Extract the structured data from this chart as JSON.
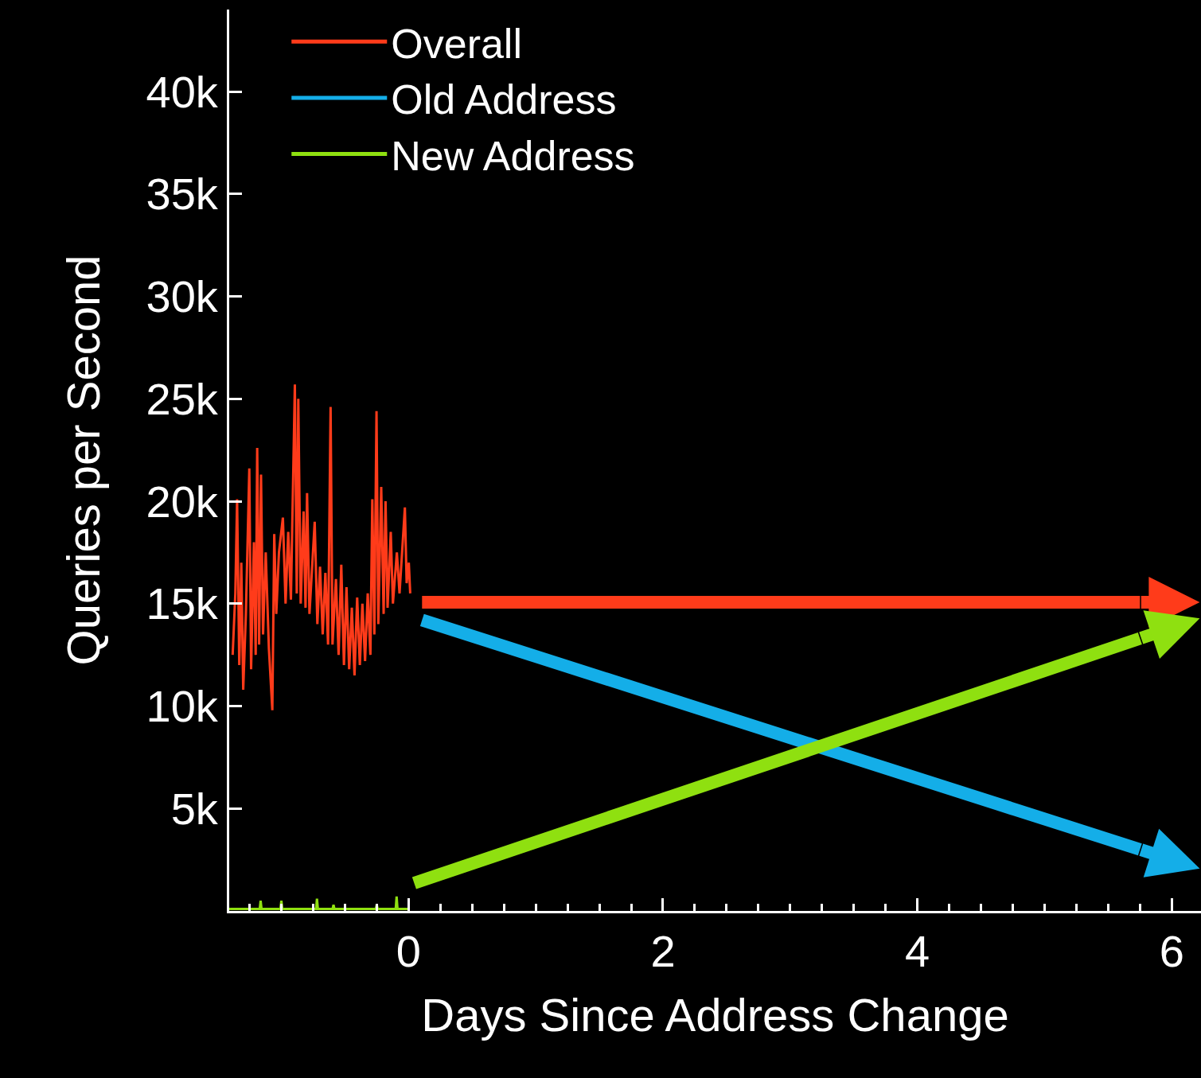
{
  "chart_data": {
    "type": "line",
    "xlabel": "Days Since Address Change",
    "ylabel": "Queries per Second",
    "xlim": [
      -1.41,
      6.23
    ],
    "ylim": [
      0,
      44000
    ],
    "xticks": [
      {
        "value": -1.25,
        "label": null
      },
      {
        "value": -1,
        "label": null
      },
      {
        "value": -0.75,
        "label": null
      },
      {
        "value": -0.5,
        "label": null
      },
      {
        "value": -0.25,
        "label": null
      },
      0,
      {
        "value": 0.25,
        "label": null
      },
      {
        "value": 0.5,
        "label": null
      },
      {
        "value": 0.75,
        "label": null
      },
      {
        "value": 1,
        "label": null
      },
      {
        "value": 1.25,
        "label": null
      },
      {
        "value": 1.5,
        "label": null
      },
      {
        "value": 1.75,
        "label": null
      },
      2,
      {
        "value": 2.25,
        "label": null
      },
      {
        "value": 2.5,
        "label": null
      },
      {
        "value": 2.75,
        "label": null
      },
      {
        "value": 3,
        "label": null
      },
      {
        "value": 3.25,
        "label": null
      },
      {
        "value": 3.5,
        "label": null
      },
      {
        "value": 3.75,
        "label": null
      },
      4,
      {
        "value": 4.25,
        "label": null
      },
      {
        "value": 4.5,
        "label": null
      },
      {
        "value": 4.75,
        "label": null
      },
      {
        "value": 5,
        "label": null
      },
      {
        "value": 5.25,
        "label": null
      },
      {
        "value": 5.5,
        "label": null
      },
      {
        "value": 5.75,
        "label": null
      },
      6
    ],
    "yticks": [
      {
        "value": 5000,
        "label": "5k"
      },
      {
        "value": 10000,
        "label": "10k"
      },
      {
        "value": 15000,
        "label": "15k"
      },
      {
        "value": 20000,
        "label": "20k"
      },
      {
        "value": 25000,
        "label": "25k"
      },
      {
        "value": 30000,
        "label": "30k"
      },
      {
        "value": 35000,
        "label": "35k"
      },
      {
        "value": 40000,
        "label": "40k"
      }
    ],
    "grid": false,
    "legend": "top left",
    "marker": "none",
    "line_style": "solid",
    "series": [
      {
        "name": "Overall",
        "color": "#ff3b1a",
        "x": [
          0.106,
          5.75
        ],
        "values": [
          15070,
          15070
        ]
      },
      {
        "name": "Old Address",
        "color": "#14aee8",
        "x": [
          0.106,
          5.75
        ],
        "values": [
          14200,
          3000
        ]
      },
      {
        "name": "New Address",
        "color": "#8fe010",
        "x": [
          0.044,
          5.75
        ],
        "values": [
          1360,
          13300
        ]
      },
      {
        "color": "#ff3b1a",
        "x": [
          -1.383,
          -1.362,
          -1.348,
          -1.331,
          -1.315,
          -1.3,
          -1.279,
          -1.252,
          -1.238,
          -1.216,
          -1.202,
          -1.19,
          -1.175,
          -1.16,
          -1.144,
          -1.123,
          -1.098,
          -1.071,
          -1.056,
          -1.04,
          -1.019,
          -0.988,
          -0.967,
          -0.946,
          -0.925,
          -0.894,
          -0.879,
          -0.867,
          -0.848,
          -0.825,
          -0.81,
          -0.798,
          -0.779,
          -0.738,
          -0.717,
          -0.696,
          -0.675,
          -0.654,
          -0.633,
          -0.613,
          -0.598,
          -0.571,
          -0.55,
          -0.529,
          -0.508,
          -0.488,
          -0.467,
          -0.446,
          -0.425,
          -0.404,
          -0.383,
          -0.363,
          -0.342,
          -0.321,
          -0.3,
          -0.285,
          -0.269,
          -0.252,
          -0.238,
          -0.215,
          -0.196,
          -0.181,
          -0.165,
          -0.14,
          -0.123,
          -0.092,
          -0.071,
          -0.029,
          -0.015,
          0.002,
          0.013
        ],
        "values": [
          12500,
          15500,
          20100,
          12000,
          17000,
          10800,
          14500,
          21600,
          11800,
          18000,
          12500,
          22600,
          13000,
          21300,
          13500,
          17500,
          12800,
          9800,
          18400,
          14500,
          17500,
          19200,
          15000,
          18500,
          15200,
          25700,
          15500,
          25000,
          15000,
          19500,
          14800,
          20400,
          14500,
          19000,
          14000,
          16800,
          13500,
          16500,
          13000,
          24600,
          13000,
          16200,
          12500,
          16900,
          12000,
          15800,
          11800,
          14800,
          11500,
          15300,
          12000,
          15000,
          12200,
          15500,
          12500,
          20100,
          13500,
          24400,
          14000,
          20700,
          14500,
          20000,
          14800,
          18500,
          15000,
          17500,
          15500,
          19700,
          16000,
          17000,
          15500
        ]
      },
      {
        "color": "#8fe010",
        "x": [
          -1.41,
          -1.17,
          -1.163,
          -1.156,
          -1.007,
          -1.0,
          -0.993,
          -0.727,
          -0.72,
          -0.713,
          -0.597,
          -0.59,
          -0.583,
          -0.257,
          -0.25,
          -0.243,
          -0.101,
          -0.094,
          -0.087,
          0.0
        ],
        "values": [
          100,
          100,
          500,
          100,
          100,
          500,
          100,
          100,
          600,
          100,
          100,
          300,
          100,
          100,
          300,
          100,
          100,
          700,
          100,
          100
        ]
      }
    ]
  }
}
